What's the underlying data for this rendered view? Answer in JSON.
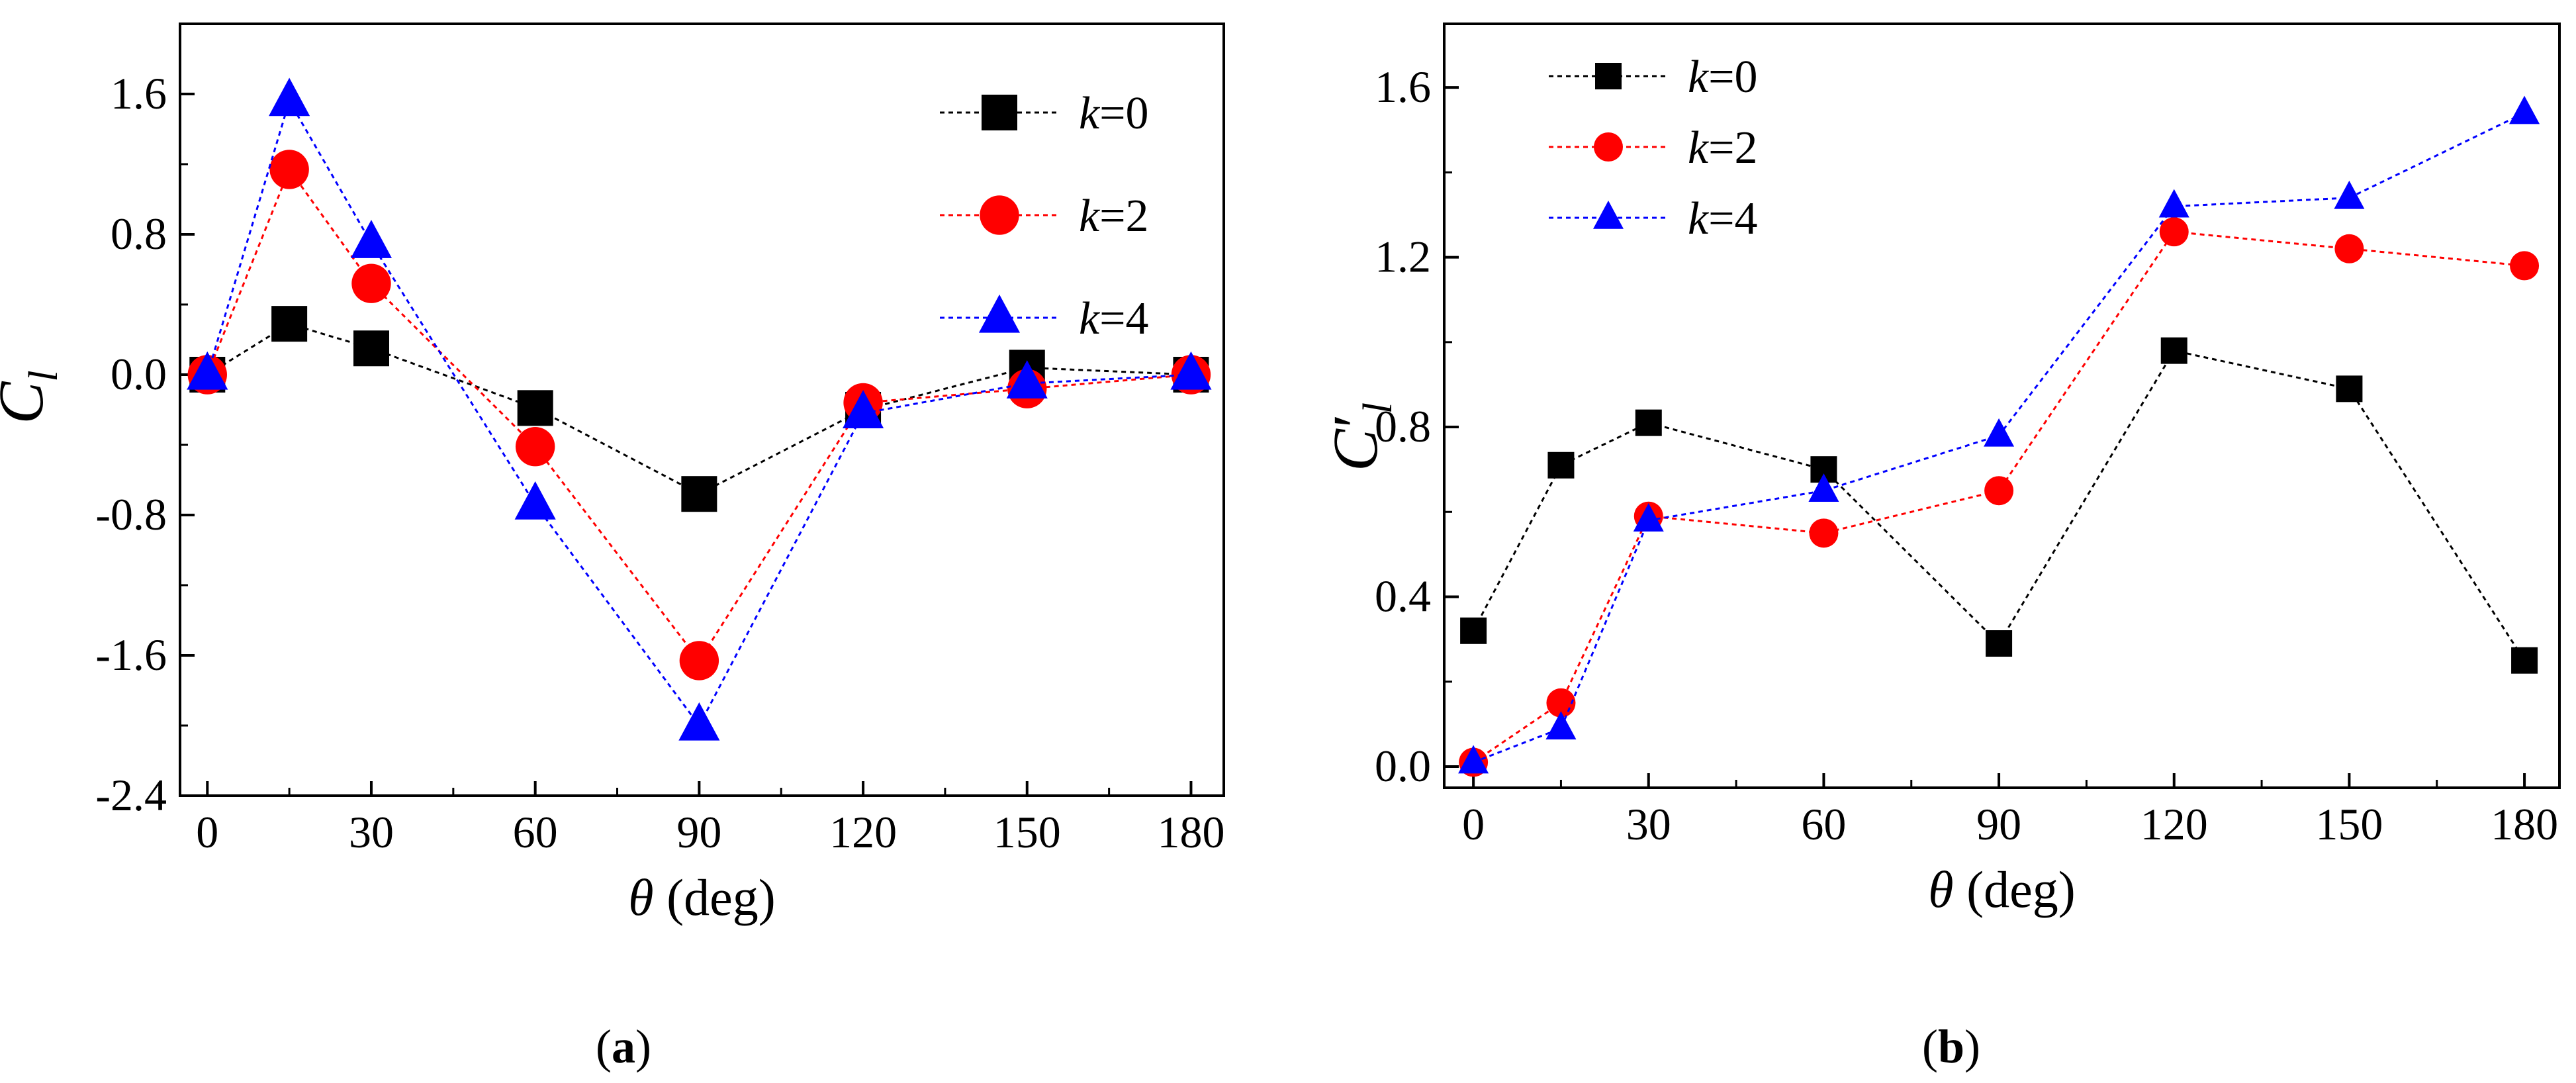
{
  "colors": {
    "series0": "#000000",
    "series1": "#ff0000",
    "series2": "#0000ff",
    "axis": "#000000"
  },
  "chart_data": [
    {
      "id": "a",
      "type": "line",
      "panel_label": "a",
      "xlabel_symbol": "θ",
      "xlabel_unit": " (deg)",
      "ylabel_symbol": "C",
      "ylabel_subscript": "l",
      "ylabel_mark": "bar",
      "xlim": [
        -5,
        186
      ],
      "ylim": [
        -2.4,
        2.0
      ],
      "x_ticks": [
        0,
        30,
        60,
        90,
        120,
        150,
        180
      ],
      "y_ticks": [
        -2.4,
        -1.6,
        -0.8,
        0.0,
        0.8,
        1.6
      ],
      "x_tick_labels": [
        "0",
        "30",
        "60",
        "90",
        "120",
        "150",
        "180"
      ],
      "y_tick_labels": [
        "-2.4",
        "-1.6",
        "-0.8",
        "0.0",
        "0.8",
        "1.6"
      ],
      "legend_position": "top-right",
      "x": [
        0,
        15,
        30,
        60,
        90,
        120,
        150,
        180
      ],
      "series": [
        {
          "name": "k",
          "value_label": "=0",
          "marker": "square",
          "color_key": "series0",
          "values": [
            0.0,
            0.29,
            0.15,
            -0.19,
            -0.68,
            -0.2,
            0.04,
            0.0
          ]
        },
        {
          "name": "k",
          "value_label": "=2",
          "marker": "circle",
          "color_key": "series1",
          "values": [
            0.0,
            1.17,
            0.52,
            -0.41,
            -1.63,
            -0.16,
            -0.08,
            0.0
          ]
        },
        {
          "name": "k",
          "value_label": "=4",
          "marker": "triangle",
          "color_key": "series2",
          "values": [
            0.0,
            1.56,
            0.75,
            -0.74,
            -2.0,
            -0.22,
            -0.05,
            0.0
          ]
        }
      ]
    },
    {
      "id": "b",
      "type": "line",
      "panel_label": "b",
      "xlabel_symbol": "θ",
      "xlabel_unit": " (deg)",
      "ylabel_symbol": "C",
      "ylabel_subscript": "l",
      "ylabel_mark": "prime",
      "xlim": [
        -5,
        186
      ],
      "ylim": [
        -0.05,
        1.75
      ],
      "x_ticks": [
        0,
        30,
        60,
        90,
        120,
        150,
        180
      ],
      "y_ticks": [
        0.0,
        0.4,
        0.8,
        1.2,
        1.6
      ],
      "x_tick_labels": [
        "0",
        "30",
        "60",
        "90",
        "120",
        "150",
        "180"
      ],
      "y_tick_labels": [
        "0.0",
        "0.4",
        "0.8",
        "1.2",
        "1.6"
      ],
      "legend_position": "top-left",
      "x": [
        0,
        15,
        30,
        60,
        90,
        120,
        150,
        180
      ],
      "series": [
        {
          "name": "k",
          "value_label": "=0",
          "marker": "square",
          "color_key": "series0",
          "values": [
            0.32,
            0.71,
            0.81,
            0.7,
            0.29,
            0.98,
            0.89,
            0.25
          ]
        },
        {
          "name": "k",
          "value_label": "=2",
          "marker": "circle",
          "color_key": "series1",
          "values": [
            0.01,
            0.15,
            0.59,
            0.55,
            0.65,
            1.26,
            1.22,
            1.18
          ]
        },
        {
          "name": "k",
          "value_label": "=4",
          "marker": "triangle",
          "color_key": "series2",
          "values": [
            0.01,
            0.09,
            0.58,
            0.65,
            0.78,
            1.32,
            1.34,
            1.54
          ]
        }
      ]
    }
  ]
}
